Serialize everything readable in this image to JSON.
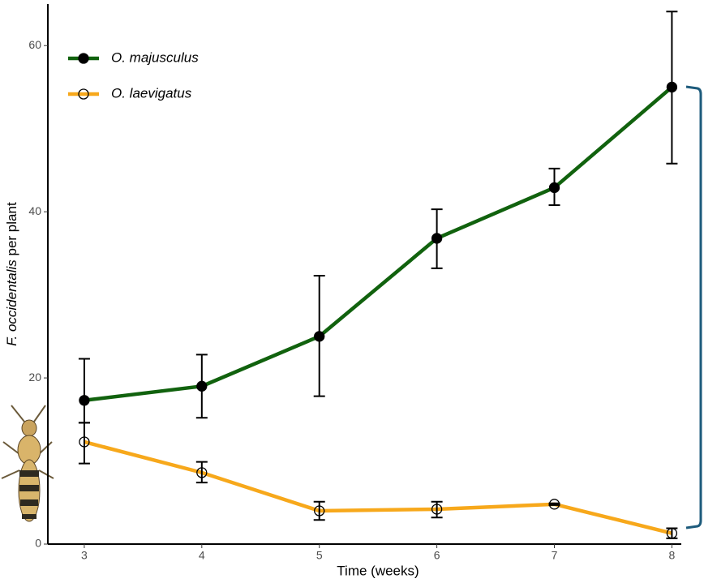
{
  "chart_data": {
    "type": "line",
    "xlabel": "Time (weeks)",
    "ylabel": {
      "italic": "F. occidentalis",
      "text": "per plant"
    },
    "x": [
      3,
      4,
      5,
      6,
      7,
      8
    ],
    "xlim": [
      2.69,
      8.08
    ],
    "xticks": [
      3,
      4,
      5,
      6,
      7,
      8
    ],
    "ylim": [
      0,
      65
    ],
    "yticks": [
      0,
      20,
      40,
      60
    ],
    "grid": false,
    "legend": "top-left",
    "series": [
      {
        "name": "O. majusculus",
        "color": "#11620e",
        "marker": "filled",
        "values": [
          17.3,
          19.0,
          25.0,
          36.8,
          42.9,
          55.0
        ],
        "upper": [
          22.3,
          22.8,
          32.3,
          40.3,
          45.2,
          64.1
        ],
        "lower": [
          14.6,
          15.2,
          17.8,
          33.2,
          40.8,
          45.8
        ]
      },
      {
        "name": "O. laevigatus",
        "color": "#f7a81b",
        "marker": "open",
        "values": [
          12.3,
          8.6,
          4.0,
          4.2,
          4.8,
          1.3
        ],
        "upper": [
          14.6,
          9.9,
          5.1,
          5.1,
          4.9,
          1.9
        ],
        "lower": [
          9.7,
          7.4,
          2.9,
          3.2,
          4.7,
          0.7
        ]
      }
    ]
  }
}
